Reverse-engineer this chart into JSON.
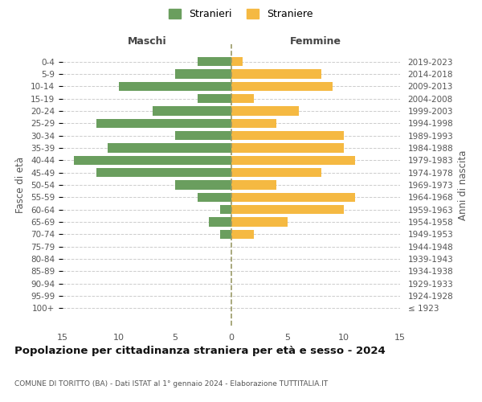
{
  "age_groups": [
    "0-4",
    "5-9",
    "10-14",
    "15-19",
    "20-24",
    "25-29",
    "30-34",
    "35-39",
    "40-44",
    "45-49",
    "50-54",
    "55-59",
    "60-64",
    "65-69",
    "70-74",
    "75-79",
    "80-84",
    "85-89",
    "90-94",
    "95-99",
    "100+"
  ],
  "birth_years": [
    "2019-2023",
    "2014-2018",
    "2009-2013",
    "2004-2008",
    "1999-2003",
    "1994-1998",
    "1989-1993",
    "1984-1988",
    "1979-1983",
    "1974-1978",
    "1969-1973",
    "1964-1968",
    "1959-1963",
    "1954-1958",
    "1949-1953",
    "1944-1948",
    "1939-1943",
    "1934-1938",
    "1929-1933",
    "1924-1928",
    "≤ 1923"
  ],
  "males": [
    3,
    5,
    10,
    3,
    7,
    12,
    5,
    11,
    14,
    12,
    5,
    3,
    1,
    2,
    1,
    0,
    0,
    0,
    0,
    0,
    0
  ],
  "females": [
    1,
    8,
    9,
    2,
    6,
    4,
    10,
    10,
    11,
    8,
    4,
    11,
    10,
    5,
    2,
    0,
    0,
    0,
    0,
    0,
    0
  ],
  "male_color": "#6a9e5e",
  "female_color": "#f5b942",
  "grid_color": "#cccccc",
  "title": "Popolazione per cittadinanza straniera per età e sesso - 2024",
  "subtitle": "COMUNE DI TORITTO (BA) - Dati ISTAT al 1° gennaio 2024 - Elaborazione TUTTITALIA.IT",
  "ylabel_left": "Fasce di età",
  "ylabel_right": "Anni di nascita",
  "xlabel_left": "Maschi",
  "xlabel_right": "Femmine",
  "legend_male": "Stranieri",
  "legend_female": "Straniere",
  "xlim": 15,
  "dashed_line_color": "#999966"
}
